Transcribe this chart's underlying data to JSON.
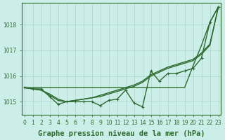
{
  "x": [
    0,
    1,
    2,
    3,
    4,
    5,
    6,
    7,
    8,
    9,
    10,
    11,
    12,
    13,
    14,
    15,
    16,
    17,
    18,
    19,
    20,
    21,
    22,
    23
  ],
  "series": [
    {
      "name": "straight_diagonal",
      "y": [
        1015.55,
        1015.55,
        1015.55,
        1015.55,
        1015.55,
        1015.55,
        1015.55,
        1015.55,
        1015.55,
        1015.55,
        1015.55,
        1015.55,
        1015.55,
        1015.55,
        1015.55,
        1015.55,
        1015.55,
        1015.55,
        1015.55,
        1015.55,
        1016.4,
        1017.2,
        1018.1,
        1018.7
      ],
      "marker": false
    },
    {
      "name": "smooth_rising",
      "y": [
        1015.55,
        1015.5,
        1015.45,
        1015.3,
        1015.1,
        1015.0,
        1015.05,
        1015.1,
        1015.15,
        1015.2,
        1015.3,
        1015.4,
        1015.5,
        1015.6,
        1015.75,
        1016.0,
        1016.15,
        1016.3,
        1016.4,
        1016.5,
        1016.6,
        1016.85,
        1017.2,
        1018.7
      ],
      "marker": false
    },
    {
      "name": "smooth_rising2",
      "y": [
        1015.55,
        1015.5,
        1015.45,
        1015.25,
        1015.05,
        1015.0,
        1015.05,
        1015.1,
        1015.15,
        1015.25,
        1015.35,
        1015.45,
        1015.55,
        1015.65,
        1015.8,
        1016.05,
        1016.2,
        1016.35,
        1016.45,
        1016.55,
        1016.65,
        1016.9,
        1017.25,
        1018.7
      ],
      "marker": false
    },
    {
      "name": "with_markers",
      "y": [
        1015.55,
        1015.5,
        1015.5,
        1015.2,
        1014.9,
        1015.0,
        1015.0,
        1015.0,
        1015.0,
        1014.85,
        1015.05,
        1015.1,
        1015.45,
        1014.95,
        1014.8,
        1016.2,
        1015.8,
        1016.1,
        1016.1,
        1016.2,
        1016.3,
        1016.7,
        1018.1,
        1018.7
      ],
      "marker": true
    }
  ],
  "line_color": "#2d6a2d",
  "marker_color": "#2d6a2d",
  "bg_color": "#cceee8",
  "grid_color": "#aad4ce",
  "xlabel": "Graphe pression niveau de la mer (hPa)",
  "xlabel_fontsize": 7.5,
  "yticks": [
    1015,
    1016,
    1017,
    1018
  ],
  "xticks": [
    0,
    1,
    2,
    3,
    4,
    5,
    6,
    7,
    8,
    9,
    10,
    11,
    12,
    13,
    14,
    15,
    16,
    17,
    18,
    19,
    20,
    21,
    22,
    23
  ],
  "xlim": [
    -0.3,
    23.3
  ],
  "ylim": [
    1014.5,
    1018.85
  ],
  "tick_fontsize": 5.5,
  "line_width": 1.0,
  "marker_size": 3.5
}
